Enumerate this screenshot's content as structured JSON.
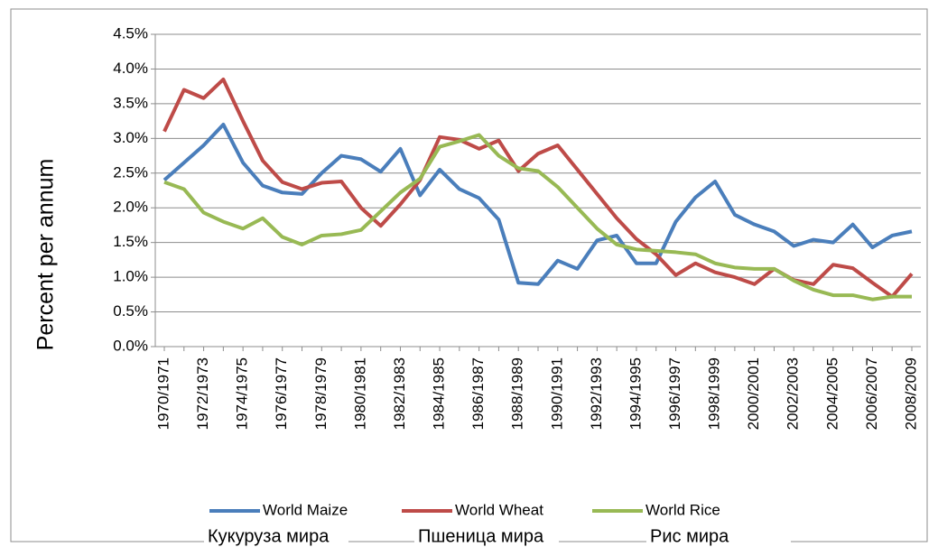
{
  "chart_data": {
    "type": "line",
    "y_label": "Percent per annum",
    "categories": [
      "1970/1971",
      null,
      "1972/1973",
      null,
      "1974/1975",
      null,
      "1976/1977",
      null,
      "1978/1979",
      null,
      "1980/1981",
      null,
      "1982/1983",
      null,
      "1984/1985",
      null,
      "1986/1987",
      null,
      "1988/1989",
      null,
      "1990/1991",
      null,
      "1992/1993",
      null,
      "1994/1995",
      null,
      "1996/1997",
      null,
      "1998/1999",
      null,
      "2000/2001",
      null,
      "2002/2003",
      null,
      "2004/2005",
      null,
      "2006/2007",
      null,
      "2008/2009"
    ],
    "series": [
      {
        "name": "World Maize",
        "color": "#4a7ebb",
        "values": [
          2.4,
          2.65,
          2.9,
          3.2,
          2.65,
          2.32,
          2.22,
          2.2,
          2.5,
          2.75,
          2.7,
          2.52,
          2.85,
          2.18,
          2.55,
          2.27,
          2.14,
          1.83,
          0.92,
          0.9,
          1.24,
          1.12,
          1.53,
          1.6,
          1.2,
          1.2,
          1.8,
          2.15,
          2.38,
          1.9,
          1.76,
          1.66,
          1.45,
          1.54,
          1.5,
          1.76,
          1.43,
          1.6,
          1.66
        ]
      },
      {
        "name": "World Wheat",
        "color": "#be4b48",
        "values": [
          3.1,
          3.7,
          3.58,
          3.85,
          3.25,
          2.68,
          2.37,
          2.27,
          2.36,
          2.38,
          2.0,
          1.74,
          2.05,
          2.4,
          3.02,
          2.98,
          2.85,
          2.97,
          2.53,
          2.78,
          2.9,
          2.55,
          2.2,
          1.85,
          1.55,
          1.33,
          1.03,
          1.2,
          1.07,
          1.0,
          0.9,
          1.12,
          0.96,
          0.9,
          1.18,
          1.13,
          0.92,
          0.72,
          1.05
        ]
      },
      {
        "name": "World Rice",
        "color": "#98b954",
        "values": [
          2.37,
          2.27,
          1.93,
          1.8,
          1.7,
          1.85,
          1.58,
          1.47,
          1.6,
          1.62,
          1.68,
          1.95,
          2.22,
          2.42,
          2.88,
          2.96,
          3.05,
          2.75,
          2.57,
          2.53,
          2.3,
          2.0,
          1.7,
          1.47,
          1.4,
          1.38,
          1.36,
          1.33,
          1.2,
          1.14,
          1.12,
          1.12,
          0.95,
          0.82,
          0.74,
          0.74,
          0.68,
          0.72,
          0.72
        ]
      }
    ],
    "ylim": [
      0,
      4.5
    ],
    "yticks": [
      {
        "value": 0,
        "label": "0.0%"
      },
      {
        "value": 0.5,
        "label": "0.5%"
      },
      {
        "value": 1,
        "label": "1.0%"
      },
      {
        "value": 1.5,
        "label": "1.5%"
      },
      {
        "value": 2,
        "label": "2.0%"
      },
      {
        "value": 2.5,
        "label": "2.5%"
      },
      {
        "value": 3,
        "label": "3.0%"
      },
      {
        "value": 3.5,
        "label": "3.5%"
      },
      {
        "value": 4,
        "label": "4.0%"
      },
      {
        "value": 4.5,
        "label": "4.5%"
      }
    ],
    "grid": true,
    "legend": "bottom",
    "annotations": [
      "Кукуруза мира",
      "Пшеница мира",
      "Рис мира"
    ]
  }
}
